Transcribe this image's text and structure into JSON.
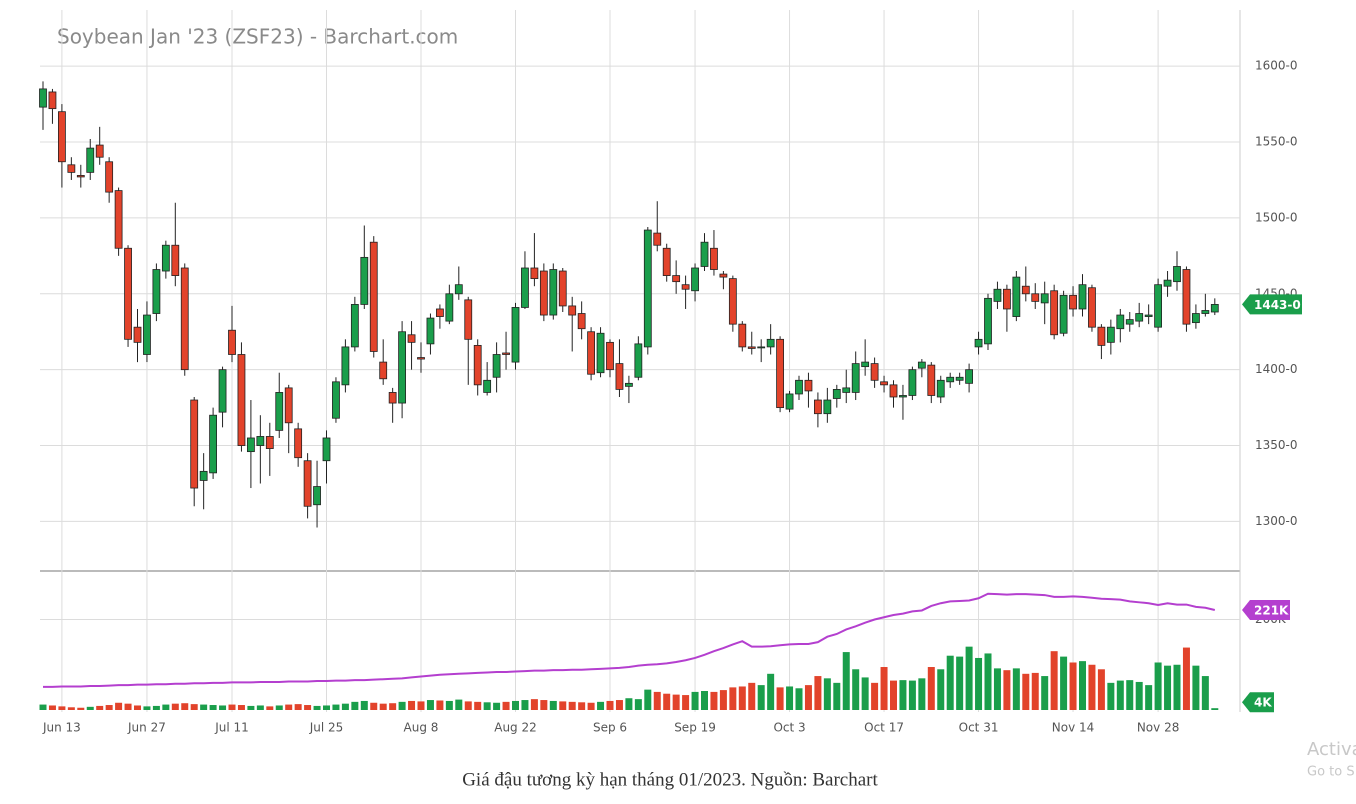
{
  "chart_data": {
    "type": "candlestick",
    "title": "Soybean Jan '23 (ZSF23) - Barchart.com",
    "caption": "Giá đậu tương kỳ hạn tháng 01/2023. Nguồn: Barchart",
    "watermark": [
      "Activa",
      "Go to S"
    ],
    "categories": [
      null,
      null,
      "Jun 13",
      null,
      null,
      null,
      null,
      null,
      null,
      null,
      null,
      "Jun 27",
      null,
      null,
      null,
      null,
      null,
      null,
      null,
      null,
      "Jul 11",
      null,
      null,
      null,
      null,
      null,
      null,
      null,
      null,
      null,
      "Jul 25",
      null,
      null,
      null,
      null,
      null,
      null,
      null,
      null,
      null,
      "Aug 8",
      null,
      null,
      null,
      null,
      null,
      null,
      null,
      null,
      null,
      "Aug 22",
      null,
      null,
      null,
      null,
      null,
      null,
      null,
      null,
      null,
      "Sep 6",
      null,
      null,
      null,
      null,
      null,
      null,
      null,
      null,
      "Sep 19",
      null,
      null,
      null,
      null,
      null,
      null,
      null,
      null,
      null,
      "Oct 3",
      null,
      null,
      null,
      null,
      null,
      null,
      null,
      null,
      null,
      "Oct 17",
      null,
      null,
      null,
      null,
      null,
      null,
      null,
      null,
      null,
      "Oct 31",
      null,
      null,
      null,
      null,
      null,
      null,
      null,
      null,
      null,
      "Nov 14",
      null,
      null,
      null,
      null,
      null,
      null,
      null,
      null,
      "Nov 28",
      null,
      null,
      null,
      null,
      null,
      null
    ],
    "price": {
      "open": [
        1573,
        1583,
        1570,
        1535,
        1528,
        1530,
        1548,
        1537,
        1518,
        1480,
        1428,
        1410,
        1437,
        1465,
        1482,
        1467,
        1380,
        1327,
        1332,
        1372,
        1426,
        1410,
        1346,
        1350,
        1356,
        1360,
        1388,
        1361,
        1340,
        1311,
        1340,
        1368,
        1390,
        1415,
        1443,
        1484,
        1405,
        1385,
        1378,
        1423,
        1408,
        1417,
        1440,
        1432,
        1450,
        1446,
        1416,
        1385,
        1395,
        1411,
        1405,
        1441,
        1467,
        1465,
        1436,
        1465,
        1442,
        1437,
        1425,
        1398,
        1418,
        1404,
        1389,
        1395,
        1415,
        1490,
        1480,
        1462,
        1456,
        1452,
        1468,
        1480,
        1463,
        1460,
        1430,
        1415,
        1415,
        1415,
        1420,
        1374,
        1384,
        1393,
        1380,
        1371,
        1381,
        1385,
        1385,
        1402,
        1404,
        1392,
        1390,
        1382,
        1383,
        1401,
        1403,
        1382,
        1392,
        1393,
        1391,
        1415,
        1417,
        1445,
        1453,
        1435,
        1455,
        1450,
        1444,
        1452,
        1424,
        1449,
        1440,
        1454,
        1428,
        1418,
        1427,
        1430,
        1432,
        1435,
        1428,
        1455,
        1458,
        1466,
        1431,
        1437,
        1438
      ],
      "high": [
        1590,
        1585,
        1575,
        1540,
        1535,
        1552,
        1560,
        1540,
        1520,
        1482,
        1440,
        1445,
        1470,
        1485,
        1510,
        1470,
        1382,
        1345,
        1375,
        1402,
        1442,
        1418,
        1380,
        1370,
        1365,
        1398,
        1390,
        1365,
        1345,
        1340,
        1360,
        1395,
        1420,
        1448,
        1495,
        1488,
        1420,
        1388,
        1432,
        1432,
        1418,
        1437,
        1443,
        1456,
        1468,
        1448,
        1420,
        1405,
        1418,
        1425,
        1444,
        1478,
        1490,
        1470,
        1470,
        1467,
        1448,
        1445,
        1428,
        1428,
        1420,
        1420,
        1396,
        1422,
        1494,
        1511,
        1483,
        1472,
        1462,
        1470,
        1490,
        1492,
        1465,
        1462,
        1432,
        1425,
        1420,
        1430,
        1422,
        1386,
        1396,
        1398,
        1385,
        1388,
        1390,
        1400,
        1412,
        1420,
        1408,
        1396,
        1393,
        1390,
        1402,
        1407,
        1405,
        1396,
        1398,
        1398,
        1404,
        1425,
        1450,
        1458,
        1456,
        1465,
        1468,
        1457,
        1458,
        1456,
        1452,
        1455,
        1463,
        1456,
        1430,
        1433,
        1440,
        1438,
        1444,
        1443,
        1460,
        1465,
        1478,
        1468,
        1443,
        1450,
        1447
      ],
      "low": [
        1558,
        1562,
        1520,
        1525,
        1520,
        1525,
        1535,
        1510,
        1475,
        1415,
        1405,
        1405,
        1432,
        1460,
        1455,
        1396,
        1310,
        1308,
        1328,
        1362,
        1405,
        1346,
        1322,
        1325,
        1330,
        1355,
        1345,
        1336,
        1302,
        1296,
        1325,
        1365,
        1385,
        1412,
        1440,
        1408,
        1390,
        1365,
        1368,
        1400,
        1398,
        1410,
        1427,
        1430,
        1446,
        1390,
        1383,
        1383,
        1385,
        1400,
        1400,
        1440,
        1455,
        1432,
        1433,
        1438,
        1412,
        1420,
        1393,
        1395,
        1395,
        1382,
        1378,
        1393,
        1410,
        1478,
        1458,
        1450,
        1440,
        1445,
        1465,
        1462,
        1453,
        1425,
        1412,
        1410,
        1405,
        1410,
        1372,
        1372,
        1380,
        1375,
        1362,
        1365,
        1375,
        1378,
        1380,
        1396,
        1388,
        1385,
        1375,
        1367,
        1380,
        1395,
        1378,
        1378,
        1388,
        1390,
        1385,
        1410,
        1413,
        1440,
        1425,
        1432,
        1445,
        1440,
        1430,
        1420,
        1422,
        1435,
        1435,
        1425,
        1407,
        1410,
        1418,
        1425,
        1428,
        1430,
        1425,
        1448,
        1452,
        1425,
        1427,
        1435,
        1436
      ],
      "close": [
        1585,
        1572,
        1537,
        1530,
        1527,
        1546,
        1540,
        1517,
        1480,
        1420,
        1418,
        1436,
        1466,
        1482,
        1462,
        1400,
        1322,
        1333,
        1370,
        1400,
        1410,
        1350,
        1355,
        1356,
        1348,
        1385,
        1365,
        1342,
        1310,
        1323,
        1355,
        1392,
        1415,
        1443,
        1474,
        1412,
        1394,
        1378,
        1425,
        1418,
        1407,
        1434,
        1435,
        1450,
        1456,
        1420,
        1390,
        1393,
        1410,
        1410,
        1441,
        1467,
        1460,
        1436,
        1466,
        1442,
        1436,
        1427,
        1397,
        1424,
        1400,
        1387,
        1391,
        1417,
        1492,
        1482,
        1462,
        1458,
        1453,
        1467,
        1484,
        1466,
        1461,
        1430,
        1415,
        1414,
        1415,
        1420,
        1375,
        1384,
        1393,
        1386,
        1371,
        1380,
        1387,
        1388,
        1404,
        1405,
        1393,
        1390,
        1382,
        1383,
        1400,
        1405,
        1383,
        1393,
        1395,
        1395,
        1400,
        1420,
        1447,
        1453,
        1440,
        1461,
        1450,
        1445,
        1450,
        1423,
        1449,
        1440,
        1456,
        1428,
        1416,
        1428,
        1436,
        1433,
        1437,
        1436,
        1456,
        1459,
        1468,
        1430,
        1437,
        1439,
        1443
      ],
      "up_color": "#1a9e4b",
      "down_color": "#e2432b",
      "last_label": "1443-0"
    },
    "volume": {
      "values": [
        12000,
        10000,
        8000,
        6000,
        5000,
        7000,
        9000,
        11000,
        16000,
        14000,
        10000,
        8000,
        9000,
        12000,
        14000,
        15000,
        13000,
        12000,
        11000,
        10000,
        12000,
        11000,
        9000,
        10000,
        8000,
        10000,
        12000,
        13000,
        11000,
        9000,
        10000,
        12000,
        14000,
        18000,
        20000,
        16000,
        14000,
        15000,
        18000,
        20000,
        19000,
        22000,
        21000,
        20000,
        23000,
        19000,
        18000,
        17000,
        16000,
        18000,
        20000,
        22000,
        24000,
        22000,
        20000,
        19000,
        18000,
        17000,
        16000,
        18000,
        20000,
        22000,
        26000,
        24000,
        45000,
        40000,
        36000,
        34000,
        33000,
        40000,
        42000,
        40000,
        44000,
        50000,
        52000,
        60000,
        55000,
        80000,
        50000,
        52000,
        48000,
        55000,
        75000,
        70000,
        60000,
        128000,
        90000,
        72000,
        60000,
        95000,
        65000,
        66000,
        65000,
        70000,
        95000,
        90000,
        120000,
        118000,
        140000,
        115000,
        125000,
        92000,
        88000,
        92000,
        80000,
        82000,
        75000,
        130000,
        118000,
        105000,
        108000,
        100000,
        90000,
        60000,
        65000,
        66000,
        62000,
        55000,
        105000,
        98000,
        100000,
        138000,
        98000,
        75000,
        4000
      ],
      "ylim": [
        0,
        305000
      ],
      "yticks": [
        {
          "value": 200000,
          "label": "200K"
        }
      ],
      "last_label": "4K"
    },
    "open_interest": {
      "color": "#b43fcf",
      "values": [
        51000,
        51000,
        52000,
        52000,
        52000,
        53000,
        53000,
        54000,
        55000,
        55000,
        56000,
        56000,
        57000,
        57000,
        58000,
        58000,
        59000,
        59000,
        60000,
        60000,
        61000,
        61000,
        61000,
        62000,
        62000,
        62000,
        63000,
        63000,
        63000,
        64000,
        64000,
        65000,
        65000,
        66000,
        66000,
        67000,
        68000,
        69000,
        70000,
        72000,
        74000,
        76000,
        78000,
        79000,
        80000,
        81000,
        82000,
        83000,
        84000,
        84000,
        85000,
        86000,
        87000,
        87000,
        88000,
        88000,
        89000,
        89000,
        90000,
        91000,
        92000,
        93000,
        95000,
        98000,
        100000,
        101000,
        103000,
        106000,
        110000,
        115000,
        122000,
        130000,
        137000,
        145000,
        152000,
        140000,
        140000,
        141000,
        143000,
        145000,
        146000,
        146000,
        150000,
        162000,
        168000,
        178000,
        185000,
        193000,
        200000,
        205000,
        210000,
        213000,
        218000,
        220000,
        230000,
        236000,
        240000,
        241000,
        242000,
        247000,
        257000,
        256000,
        255000,
        256000,
        256000,
        255000,
        254000,
        250000,
        250000,
        251000,
        250000,
        248000,
        246000,
        245000,
        244000,
        240000,
        238000,
        236000,
        232000,
        236000,
        233000,
        233000,
        228000,
        226000,
        221000
      ],
      "last_label": "221K"
    },
    "ylim": [
      1268,
      1637
    ],
    "yticks": [
      {
        "value": 1300,
        "label": "1300-0"
      },
      {
        "value": 1350,
        "label": "1350-0"
      },
      {
        "value": 1400,
        "label": "1400-0"
      },
      {
        "value": 1450,
        "label": "1450-0"
      },
      {
        "value": 1500,
        "label": "1500-0"
      },
      {
        "value": 1550,
        "label": "1550-0"
      },
      {
        "value": 1600,
        "label": "1600-0"
      }
    ],
    "grid": true
  }
}
